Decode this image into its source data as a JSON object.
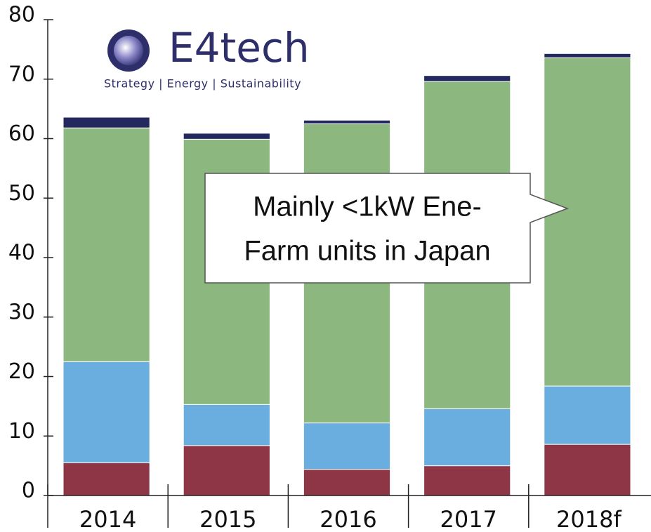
{
  "chart_data": {
    "type": "stacked_bar",
    "categories": [
      "2014",
      "2015",
      "2016",
      "2017",
      "2018f"
    ],
    "series": [
      {
        "color": "#8e3646",
        "values": [
          5.5,
          8.4,
          4.4,
          5.0,
          8.6
        ]
      },
      {
        "color": "#6aaee0",
        "values": [
          17.0,
          6.9,
          7.8,
          9.6,
          9.8
        ]
      },
      {
        "color": "#8cb87f",
        "values": [
          39.3,
          44.6,
          50.3,
          55.0,
          55.2
        ]
      },
      {
        "color": "#23295e",
        "values": [
          1.8,
          1.0,
          0.6,
          1.0,
          0.7
        ]
      }
    ],
    "ylim": [
      0,
      80
    ],
    "yticks": [
      0,
      10,
      20,
      30,
      40,
      50,
      60,
      70,
      80
    ],
    "annotation": [
      "Mainly <1kW Ene-",
      "Farm units in Japan"
    ],
    "logo": {
      "name": "E4tech",
      "tagline": "Strategy | Energy | Sustainability"
    }
  }
}
